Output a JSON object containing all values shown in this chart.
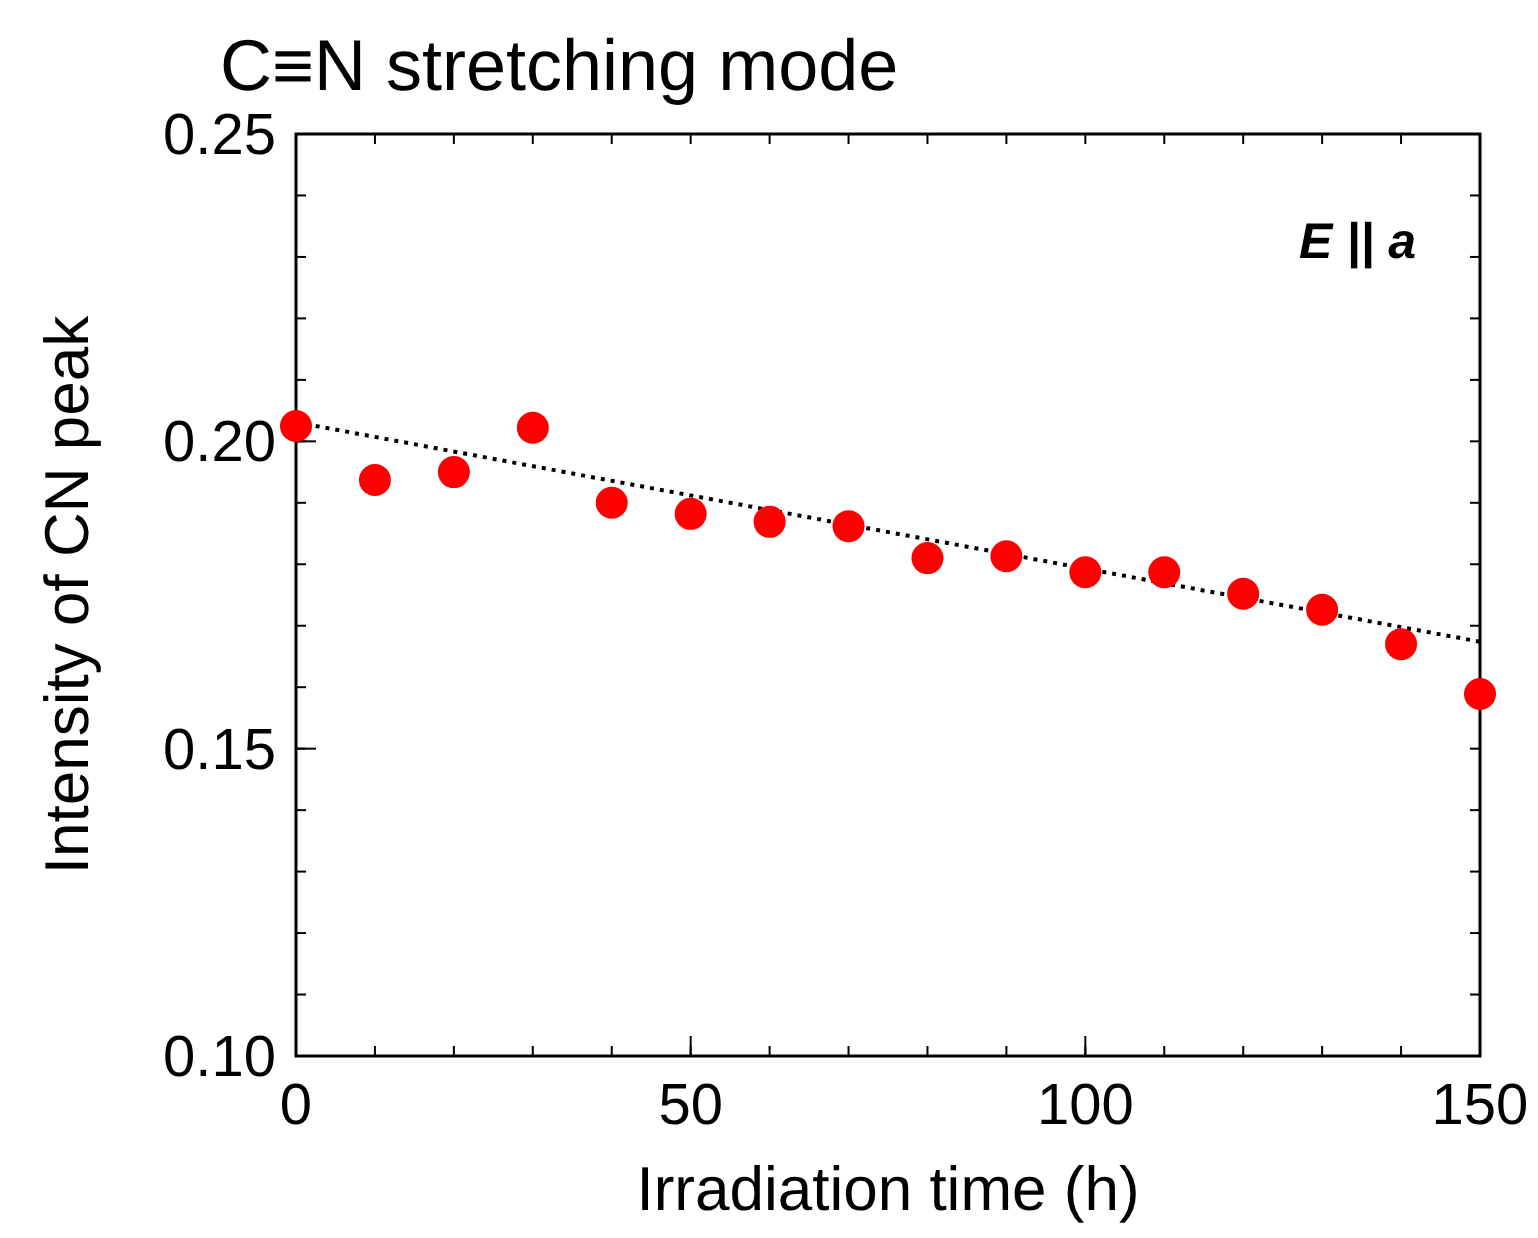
{
  "chart_data": {
    "type": "scatter",
    "title": "C≡N stretching mode",
    "xlabel": "Irradiation time (h)",
    "ylabel": "Intensity of CN peak",
    "annotations": [
      "E || a"
    ],
    "xlim": [
      0,
      150
    ],
    "xticks": [
      0,
      50,
      100,
      150
    ],
    "ylim": [
      0.1,
      0.25
    ],
    "yticks": [
      {
        "value": 0.1,
        "label": "0.10"
      },
      {
        "value": 0.15,
        "label": "0.15"
      },
      {
        "value": 0.2,
        "label": "0.20"
      },
      {
        "value": 0.25,
        "label": "0.25"
      }
    ],
    "grid": false,
    "series": [
      {
        "marker": "circle",
        "color": "#ff0000",
        "x": [
          0,
          10,
          20,
          30,
          40,
          50,
          60,
          70,
          80,
          90,
          100,
          110,
          120,
          130,
          140,
          150
        ],
        "values": [
          0.2025,
          0.1937,
          0.195,
          0.2022,
          0.19,
          0.1882,
          0.1869,
          0.1862,
          0.181,
          0.1813,
          0.1787,
          0.1787,
          0.1752,
          0.1726,
          0.167,
          0.1589
        ]
      },
      {
        "type": "line",
        "color": "#000000",
        "line_style": "dotted",
        "x": [
          0,
          150
        ],
        "values": [
          0.2031,
          0.1674
        ]
      }
    ]
  }
}
